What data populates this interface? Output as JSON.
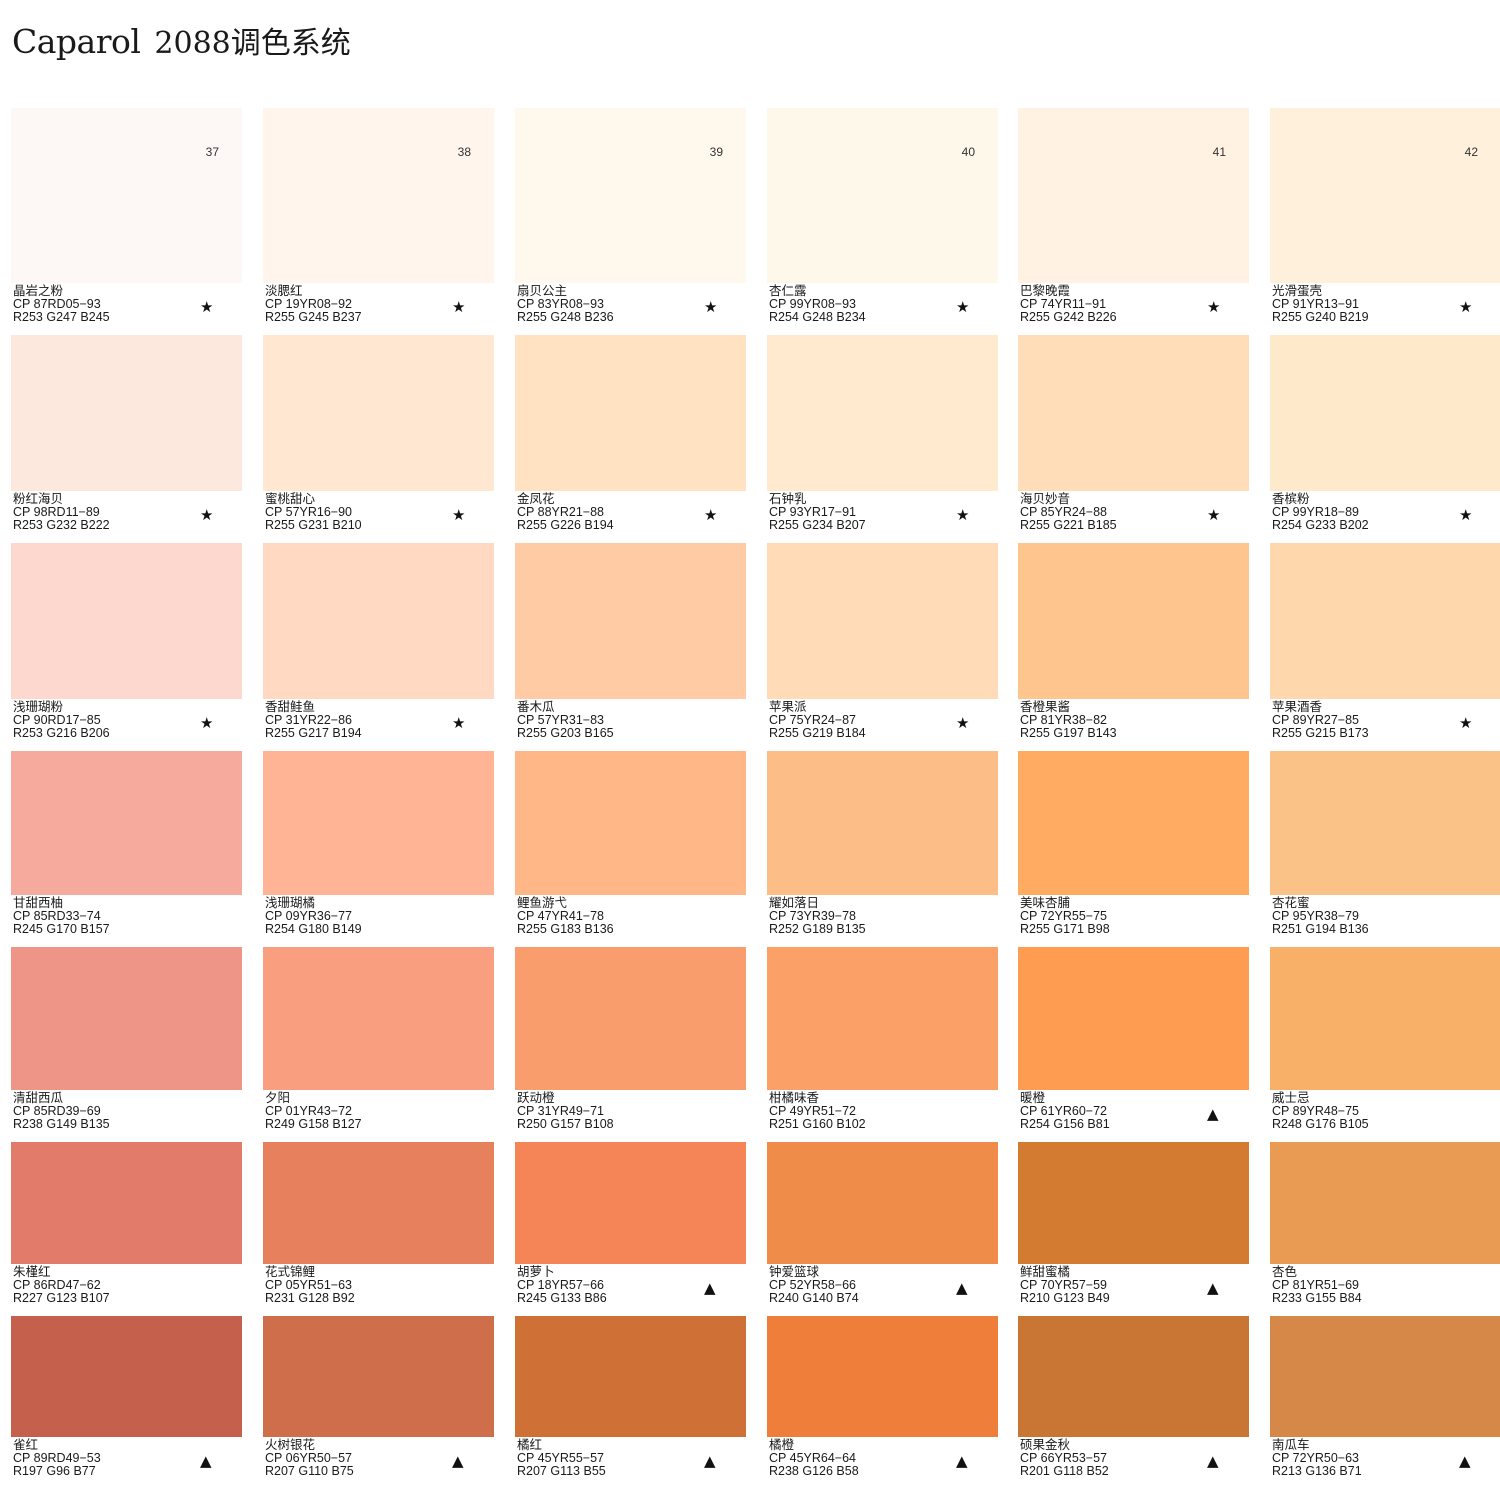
{
  "header": {
    "brand": "Caparol",
    "subtitle": "2088调色系统"
  },
  "page_numbers": [
    "37",
    "38",
    "39",
    "40",
    "41",
    "42"
  ],
  "rows": [
    [
      {
        "name": "晶岩之粉",
        "code": "CP  87RD05−93",
        "rgb": "R253 G247 B245",
        "color": "#FDF7F5",
        "mark": "★"
      },
      {
        "name": "淡腮红",
        "code": "CP  19YR08−92",
        "rgb": "R255 G245 B237",
        "color": "#FFF5ED",
        "mark": "★"
      },
      {
        "name": "扇贝公主",
        "code": "CP  83YR08−93",
        "rgb": "R255 G248 B236",
        "color": "#FFF8EC",
        "mark": "★"
      },
      {
        "name": "杏仁露",
        "code": "CP  99YR08−93",
        "rgb": "R254 G248 B234",
        "color": "#FEF8EA",
        "mark": "★"
      },
      {
        "name": "巴黎晚霞",
        "code": "CP  74YR11−91",
        "rgb": "R255 G242 B226",
        "color": "#FFF2E2",
        "mark": "★"
      },
      {
        "name": "光滑蛋壳",
        "code": "CP  91YR13−91",
        "rgb": "R255 G240 B219",
        "color": "#FFF0DB",
        "mark": "★"
      }
    ],
    [
      {
        "name": "粉红海贝",
        "code": "CP  98RD11−89",
        "rgb": "R253 G232 B222",
        "color": "#FDE8DE",
        "mark": "★"
      },
      {
        "name": "蜜桃甜心",
        "code": "CP  57YR16−90",
        "rgb": "R255 G231 B210",
        "color": "#FFE7D2",
        "mark": "★"
      },
      {
        "name": "金凤花",
        "code": "CP  88YR21−88",
        "rgb": "R255 G226 B194",
        "color": "#FFE2C2",
        "mark": "★"
      },
      {
        "name": "石钟乳",
        "code": "CP  93YR17−91",
        "rgb": "R255 G234 B207",
        "color": "#FFEACF",
        "mark": "★"
      },
      {
        "name": "海贝妙音",
        "code": "CP  85YR24−88",
        "rgb": "R255 G221 B185",
        "color": "#FFDDB9",
        "mark": "★"
      },
      {
        "name": "香槟粉",
        "code": "CP  99YR18−89",
        "rgb": "R254 G233 B202",
        "color": "#FEE9CA",
        "mark": "★"
      }
    ],
    [
      {
        "name": "浅珊瑚粉",
        "code": "CP  90RD17−85",
        "rgb": "R253 G216 B206",
        "color": "#FDD8CE",
        "mark": "★"
      },
      {
        "name": "香甜鲑鱼",
        "code": "CP  31YR22−86",
        "rgb": "R255 G217 B194",
        "color": "#FFD9C2",
        "mark": "★"
      },
      {
        "name": "番木瓜",
        "code": "CP  57YR31−83",
        "rgb": "R255 G203 B165",
        "color": "#FFCBA5",
        "mark": ""
      },
      {
        "name": "苹果派",
        "code": "CP  75YR24−87",
        "rgb": "R255 G219 B184",
        "color": "#FFDBB8",
        "mark": "★"
      },
      {
        "name": "香橙果酱",
        "code": "CP  81YR38−82",
        "rgb": "R255 G197 B143",
        "color": "#FFC58F",
        "mark": ""
      },
      {
        "name": "苹果酒香",
        "code": "CP  89YR27−85",
        "rgb": "R255 G215 B173",
        "color": "#FFD7AD",
        "mark": "★"
      }
    ],
    [
      {
        "name": "甘甜西柚",
        "code": "CP  85RD33−74",
        "rgb": "R245 G170 B157",
        "color": "#F5AA9D",
        "mark": ""
      },
      {
        "name": "浅珊瑚橘",
        "code": "CP  09YR36−77",
        "rgb": "R254 G180 B149",
        "color": "#FEB495",
        "mark": ""
      },
      {
        "name": "鲤鱼游弋",
        "code": "CP  47YR41−78",
        "rgb": "R255 G183 B136",
        "color": "#FFB788",
        "mark": ""
      },
      {
        "name": "耀如落日",
        "code": "CP  73YR39−78",
        "rgb": "R252 G189 B135",
        "color": "#FCBD87",
        "mark": ""
      },
      {
        "name": "美味杏脯",
        "code": "CP  72YR55−75",
        "rgb": "R255 G171 B98",
        "color": "#FFAB62",
        "mark": ""
      },
      {
        "name": "杏花蜜",
        "code": "CP  95YR38−79",
        "rgb": "R251 G194 B136",
        "color": "#FBC288",
        "mark": ""
      }
    ],
    [
      {
        "name": "清甜西瓜",
        "code": "CP  85RD39−69",
        "rgb": "R238 G149 B135",
        "color": "#EE9587",
        "mark": ""
      },
      {
        "name": "夕阳",
        "code": "CP  01YR43−72",
        "rgb": "R249 G158 B127",
        "color": "#F99E7F",
        "mark": ""
      },
      {
        "name": "跃动橙",
        "code": "CP  31YR49−71",
        "rgb": "R250 G157 B108",
        "color": "#FA9D6C",
        "mark": ""
      },
      {
        "name": "柑橘味香",
        "code": "CP  49YR51−72",
        "rgb": "R251 G160 B102",
        "color": "#FBA066",
        "mark": ""
      },
      {
        "name": "暖橙",
        "code": "CP  61YR60−72",
        "rgb": "R254 G156 B81",
        "color": "#FE9C51",
        "mark": "▲"
      },
      {
        "name": "威士忌",
        "code": "CP  89YR48−75",
        "rgb": "R248 G176 B105",
        "color": "#F8B069",
        "mark": ""
      }
    ],
    [
      {
        "name": "朱槿红",
        "code": "CP  86RD47−62",
        "rgb": "R227 G123 B107",
        "color": "#E37B6B",
        "mark": ""
      },
      {
        "name": "花式锦鲤",
        "code": "CP  05YR51−63",
        "rgb": "R231 G128 B92",
        "color": "#E7805C",
        "mark": ""
      },
      {
        "name": "胡萝卜",
        "code": "CP  18YR57−66",
        "rgb": "R245 G133 B86",
        "color": "#F58556",
        "mark": "▲"
      },
      {
        "name": "钟爱篮球",
        "code": "CP  52YR58−66",
        "rgb": "R240 G140 B74",
        "color": "#F08C4A",
        "mark": "▲"
      },
      {
        "name": "鲜甜蜜橘",
        "code": "CP  70YR57−59",
        "rgb": "R210 G123 B49",
        "color": "#D27B31",
        "mark": "▲"
      },
      {
        "name": "杏色",
        "code": "CP  81YR51−69",
        "rgb": "R233 G155 B84",
        "color": "#E99B54",
        "mark": ""
      }
    ],
    [
      {
        "name": "雀红",
        "code": "CP  89RD49−53",
        "rgb": "R197 G96 B77",
        "color": "#C5604D",
        "mark": "▲"
      },
      {
        "name": "火树银花",
        "code": "CP  06YR50−57",
        "rgb": "R207 G110 B75",
        "color": "#CF6E4B",
        "mark": "▲"
      },
      {
        "name": "橘红",
        "code": "CP  45YR55−57",
        "rgb": "R207 G113 B55",
        "color": "#CF7137",
        "mark": "▲"
      },
      {
        "name": "橘橙",
        "code": "CP  45YR64−64",
        "rgb": "R238 G126 B58",
        "color": "#EE7E3A",
        "mark": "▲"
      },
      {
        "name": "硕果金秋",
        "code": "CP  66YR53−57",
        "rgb": "R201 G118 B52",
        "color": "#C97634",
        "mark": "▲"
      },
      {
        "name": "南瓜车",
        "code": "CP  72YR50−63",
        "rgb": "R213 G136 B71",
        "color": "#D58847",
        "mark": "▲"
      }
    ]
  ]
}
